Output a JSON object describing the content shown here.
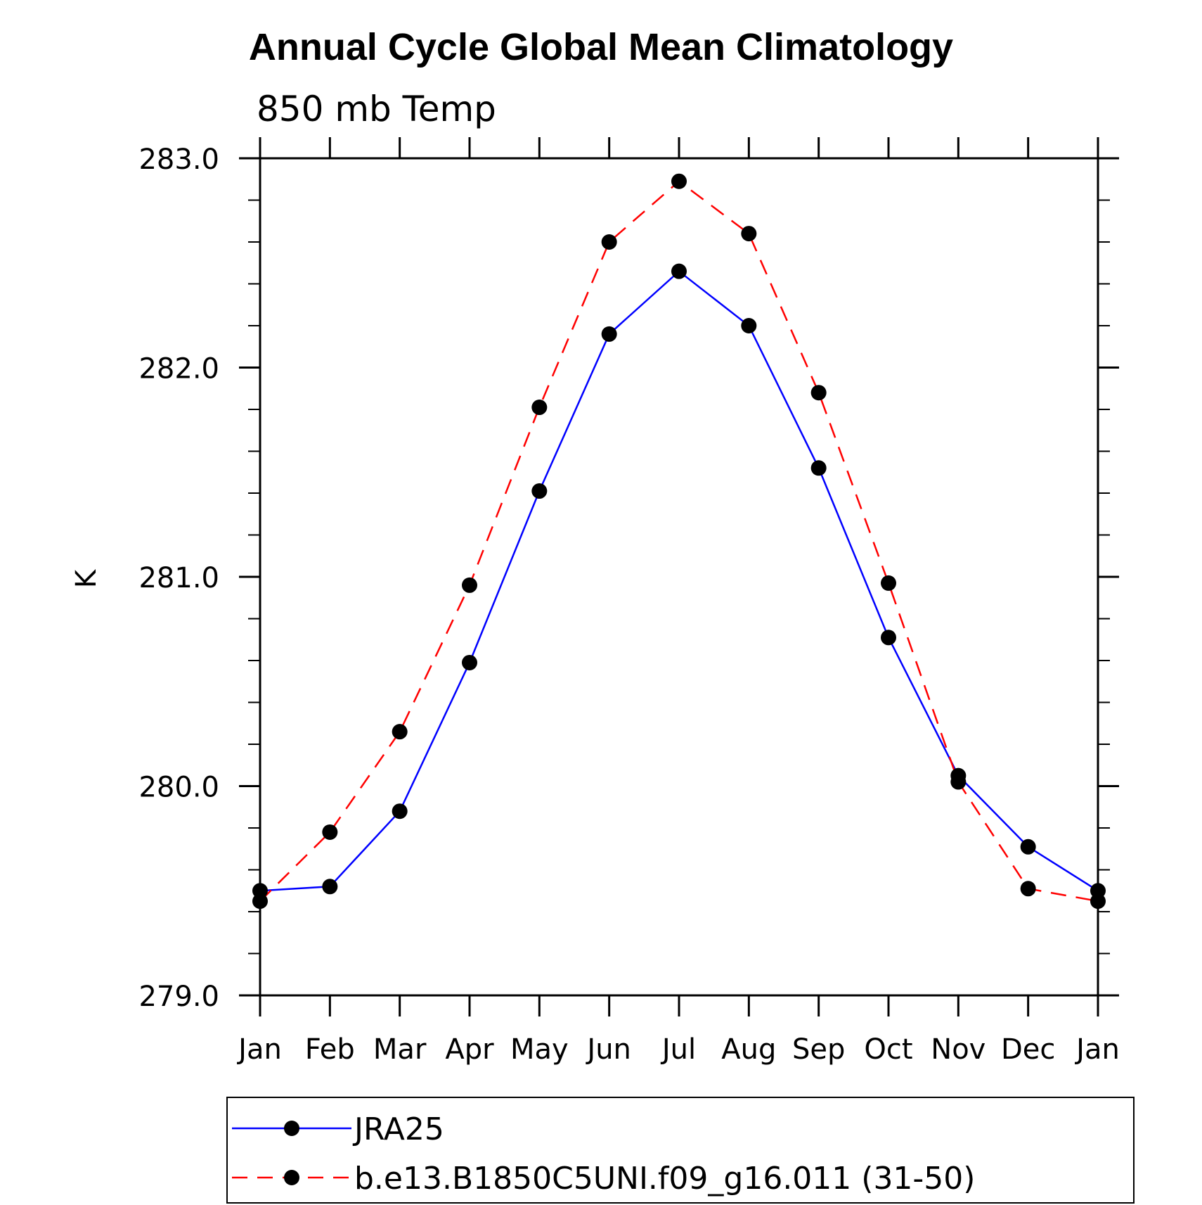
{
  "chart_data": {
    "type": "line",
    "title": "Annual Cycle Global Mean Climatology",
    "subtitle": "850 mb Temp",
    "ylabel": "K",
    "xlabel": "",
    "categories": [
      "Jan",
      "Feb",
      "Mar",
      "Apr",
      "May",
      "Jun",
      "Jul",
      "Aug",
      "Sep",
      "Oct",
      "Nov",
      "Dec",
      "Jan"
    ],
    "ylim": [
      279.0,
      283.0
    ],
    "yticks": [
      "279.0",
      "280.0",
      "281.0",
      "282.0",
      "283.0"
    ],
    "grid": false,
    "legend_position": "bottom",
    "series": [
      {
        "name": "JRA25",
        "color": "#0000ff",
        "line_style": "solid",
        "marker": "filled-circle",
        "values": [
          279.5,
          279.52,
          279.88,
          280.59,
          281.41,
          282.16,
          282.46,
          282.2,
          281.52,
          280.71,
          280.05,
          279.71,
          279.5
        ]
      },
      {
        "name": "b.e13.B1850C5UNI.f09_g16.011 (31-50)",
        "color": "#ff0000",
        "line_style": "dashed",
        "marker": "filled-circle",
        "values": [
          279.45,
          279.78,
          280.26,
          280.96,
          281.81,
          282.6,
          282.89,
          282.64,
          281.88,
          280.97,
          280.02,
          279.51,
          279.45
        ]
      }
    ]
  }
}
